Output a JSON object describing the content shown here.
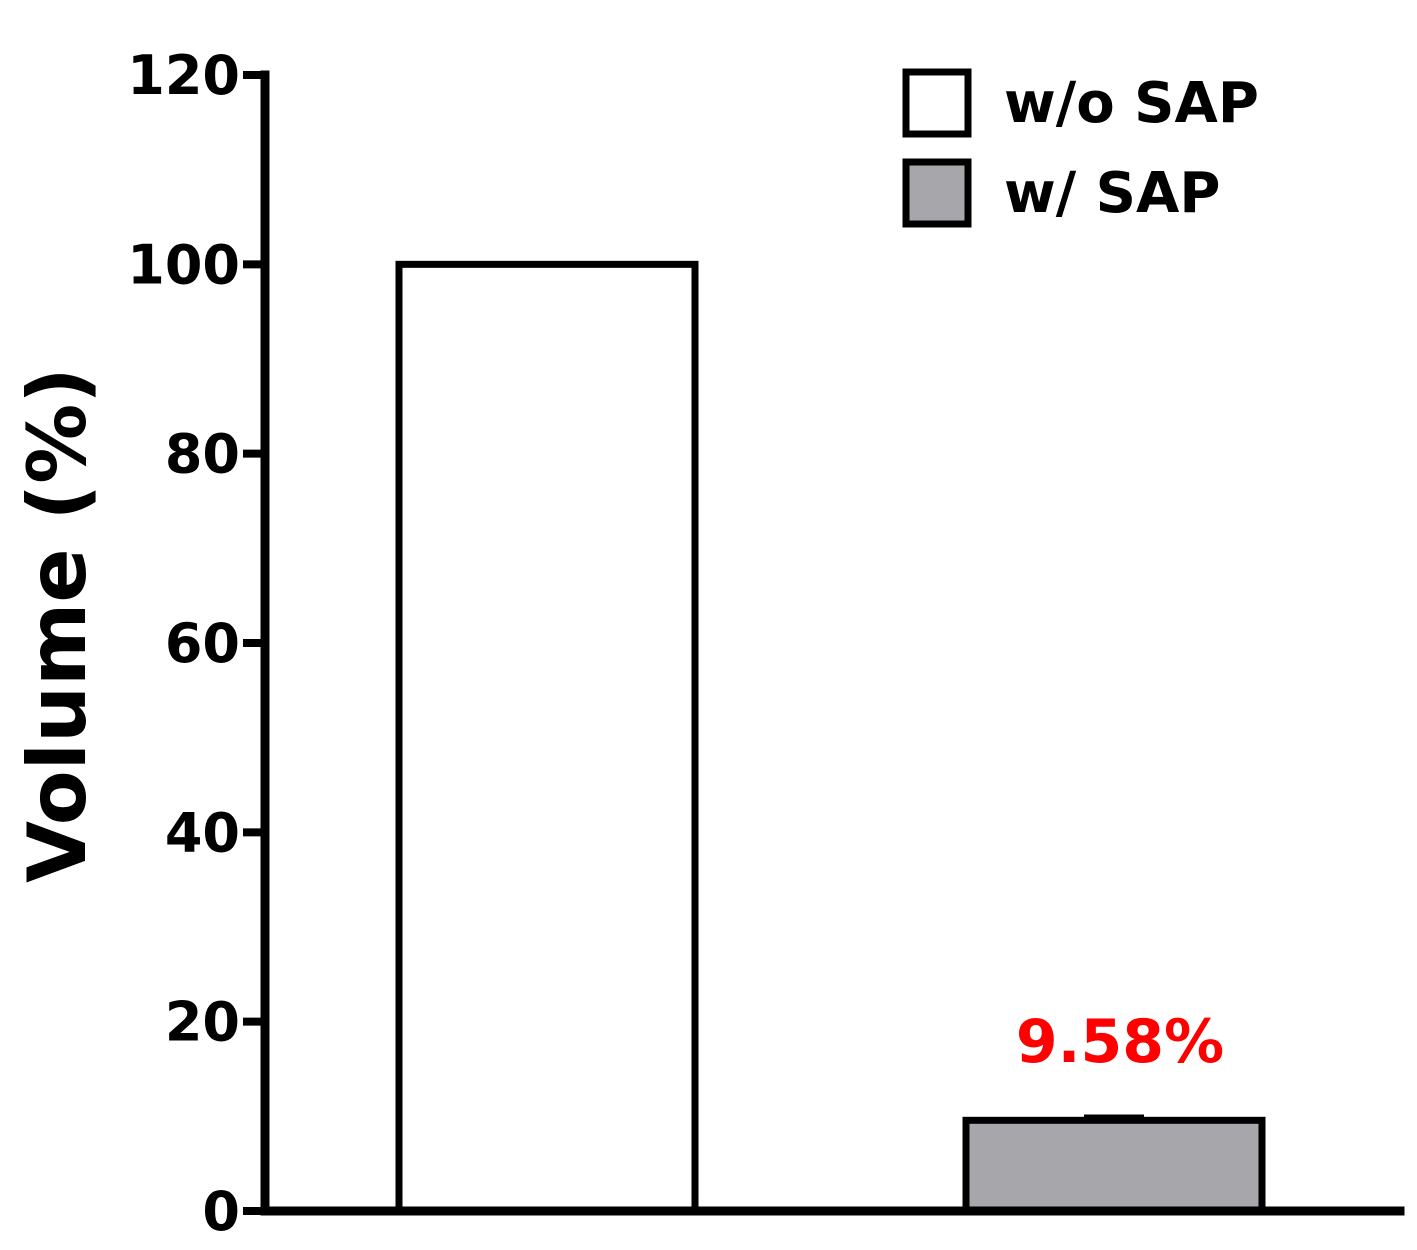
{
  "chart_data": {
    "type": "bar",
    "title": "",
    "xlabel": "",
    "ylabel": "Volume (%)",
    "ylim": [
      0,
      120
    ],
    "yticks": [
      0,
      20,
      40,
      60,
      80,
      100,
      120
    ],
    "grid": false,
    "legend_position": "top-right",
    "series": [
      {
        "name": "w/o SAP",
        "value": 100,
        "color": "#ffffff"
      },
      {
        "name": "w/ SAP",
        "value": 9.58,
        "error": 0.3,
        "color": "#a7a6ab",
        "data_label": "9.58%"
      }
    ],
    "data_label_color": "#ff0000"
  }
}
